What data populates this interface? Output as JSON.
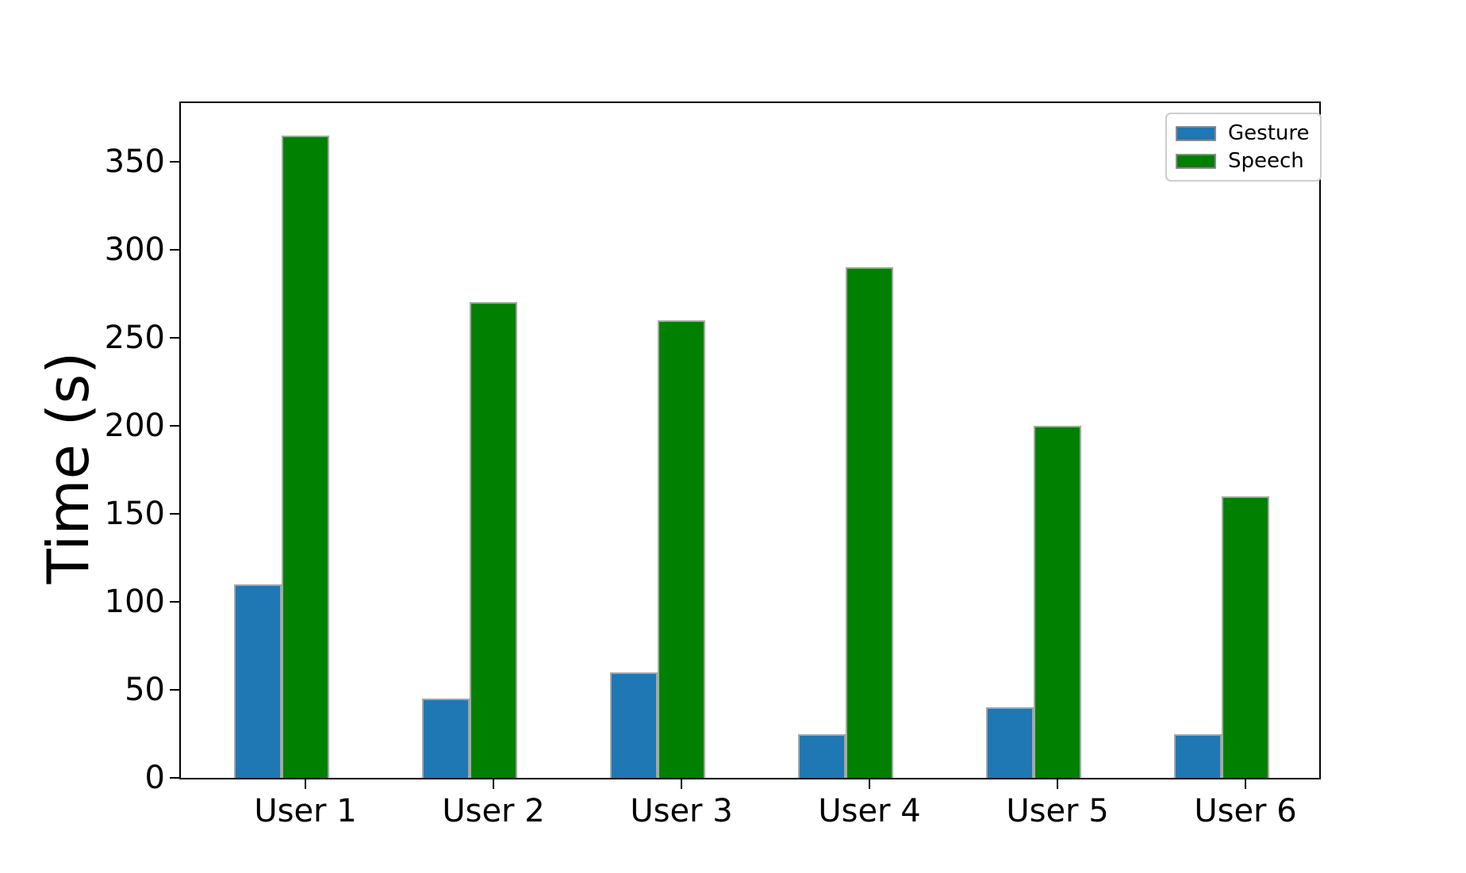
{
  "colors": {
    "gesture": "#1f77b4",
    "speech": "#008000",
    "bar_edge": "#a6a6a6",
    "axis": "#000000",
    "legend_border": "#cccccc"
  },
  "chart_data": {
    "type": "bar",
    "title": "",
    "xlabel": "",
    "ylabel": "Time (s)",
    "categories": [
      "User 1",
      "User 2",
      "User 3",
      "User 4",
      "User 5",
      "User 6"
    ],
    "series": [
      {
        "name": "Gesture",
        "color_key": "gesture",
        "values": [
          110,
          45,
          60,
          25,
          40,
          25
        ]
      },
      {
        "name": "Speech",
        "color_key": "speech",
        "values": [
          365,
          270,
          260,
          290,
          200,
          160
        ]
      }
    ],
    "yticks": [
      0,
      50,
      100,
      150,
      200,
      250,
      300,
      350
    ],
    "ylim": [
      0,
      383.25
    ],
    "grid": false,
    "legend_position": "upper-right"
  }
}
